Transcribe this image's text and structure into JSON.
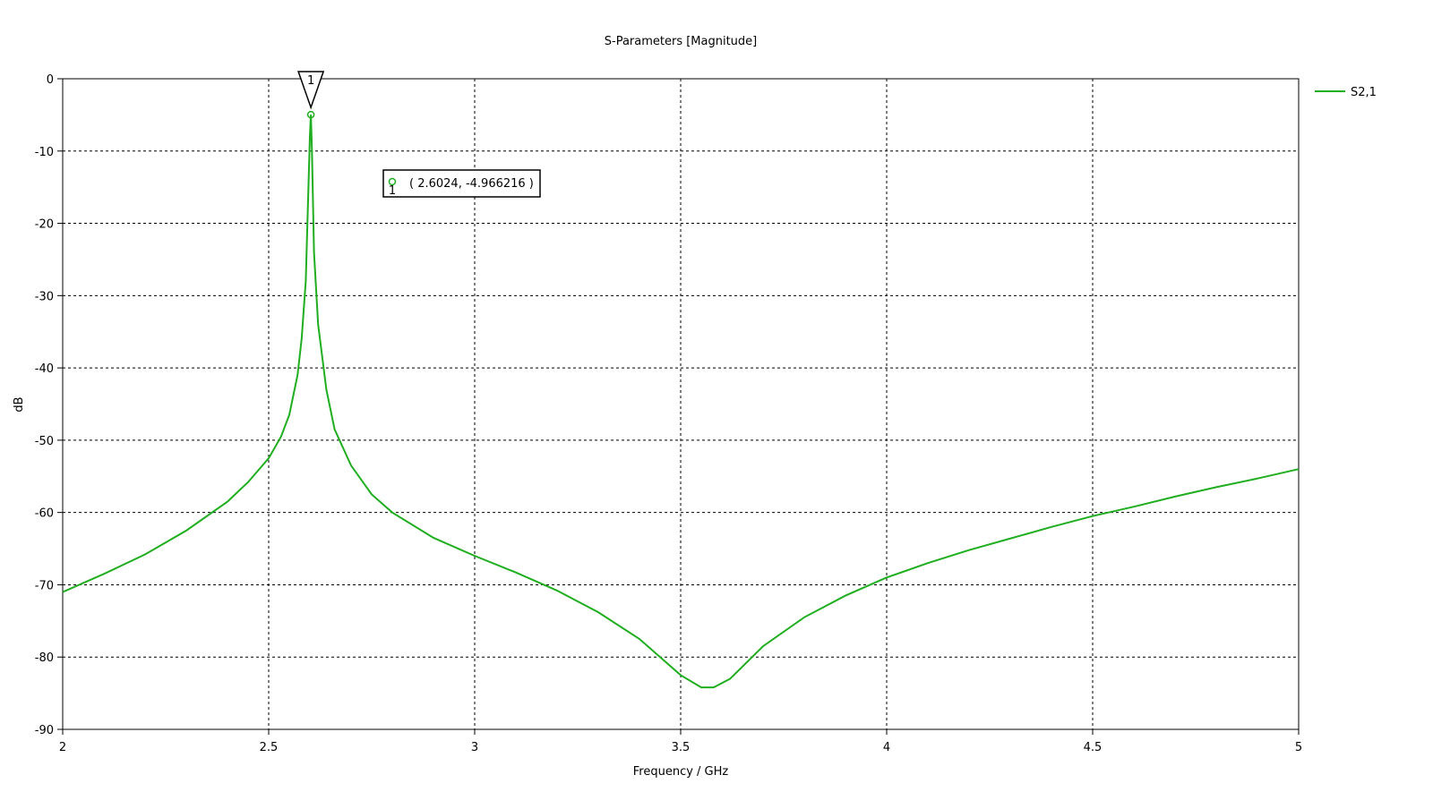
{
  "chart_data": {
    "type": "line",
    "title": "S-Parameters [Magnitude]",
    "x_label": "Frequency / GHz",
    "y_label": "dB",
    "xlim": [
      2,
      5
    ],
    "ylim": [
      -90,
      0
    ],
    "xticks": [
      2,
      2.5,
      3,
      3.5,
      4,
      4.5,
      5
    ],
    "yticks": [
      0,
      -10,
      -20,
      -30,
      -40,
      -50,
      -60,
      -70,
      -80,
      -90
    ],
    "grid": true,
    "legend": "right",
    "x": [
      2,
      2.1,
      2.2,
      2.3,
      2.4,
      2.45,
      2.5,
      2.53,
      2.55,
      2.57,
      2.58,
      2.59,
      2.595,
      2.6,
      2.6024,
      2.605,
      2.61,
      2.62,
      2.64,
      2.66,
      2.7,
      2.75,
      2.8,
      2.9,
      3.0,
      3.1,
      3.2,
      3.3,
      3.4,
      3.45,
      3.5,
      3.55,
      3.58,
      3.62,
      3.7,
      3.8,
      3.9,
      4.0,
      4.1,
      4.2,
      4.3,
      4.4,
      4.5,
      4.6,
      4.7,
      4.8,
      4.9,
      5.0
    ],
    "series": [
      {
        "name": "S2,1",
        "color": "#1fae1f",
        "values": [
          -71,
          -68.5,
          -65.8,
          -62.5,
          -58.5,
          -55.8,
          -52.5,
          -49.5,
          -46.5,
          -41,
          -36,
          -28,
          -18,
          -8,
          -4.966216,
          -10,
          -24,
          -34,
          -43,
          -48.5,
          -53.5,
          -57.5,
          -60,
          -63.5,
          -66,
          -68.3,
          -70.8,
          -73.8,
          -77.5,
          -80,
          -82.5,
          -84.2,
          -84.2,
          -83,
          -78.5,
          -74.5,
          -71.5,
          -69,
          -67,
          -65.2,
          -63.6,
          -62,
          -60.5,
          -59.2,
          -57.8,
          -56.5,
          -55.3,
          -54
        ]
      }
    ],
    "marker": {
      "label": "1",
      "x": 2.6024,
      "y": -4.966216,
      "text": "( 2.6024, -4.966216 )"
    }
  }
}
